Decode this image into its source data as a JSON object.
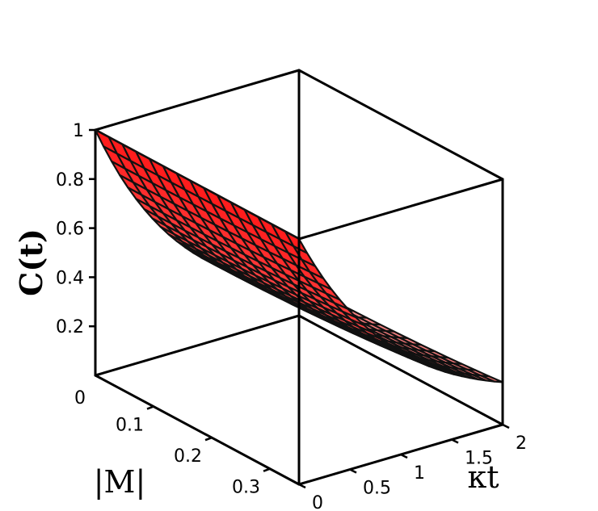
{
  "chart_data": {
    "type": "surface3d",
    "title": "",
    "function": "C(t) = exp(-kt * (1 - |M|^2))",
    "x_axis": {
      "label": "κt",
      "range": [
        0,
        2
      ],
      "ticks": [
        {
          "value": 0,
          "label": "0"
        },
        {
          "value": 0.5,
          "label": "0.5"
        },
        {
          "value": 1,
          "label": "1"
        },
        {
          "value": 1.5,
          "label": "1.5"
        },
        {
          "value": 2,
          "label": "2"
        }
      ]
    },
    "y_axis": {
      "label": "|M|",
      "range": [
        0,
        0.35
      ],
      "ticks": [
        {
          "value": 0,
          "label": "0"
        },
        {
          "value": 0.1,
          "label": "0.1"
        },
        {
          "value": 0.2,
          "label": "0.2"
        },
        {
          "value": 0.3,
          "label": "0.3"
        }
      ]
    },
    "z_axis": {
      "label": "C(t)",
      "range": [
        0.135,
        1
      ],
      "ticks": [
        {
          "value": 0.2,
          "label": "0.2"
        },
        {
          "value": 0.4,
          "label": "0.4"
        },
        {
          "value": 0.6,
          "label": "0.6"
        },
        {
          "value": 0.8,
          "label": "0.8"
        },
        {
          "value": 1,
          "label": "1"
        }
      ]
    },
    "grid": {
      "kt_steps": 25,
      "m_steps": 15
    },
    "colors": {
      "surface_low": "#f58a8a",
      "surface_high": "#ff1a1a",
      "mesh": "#111111"
    }
  }
}
